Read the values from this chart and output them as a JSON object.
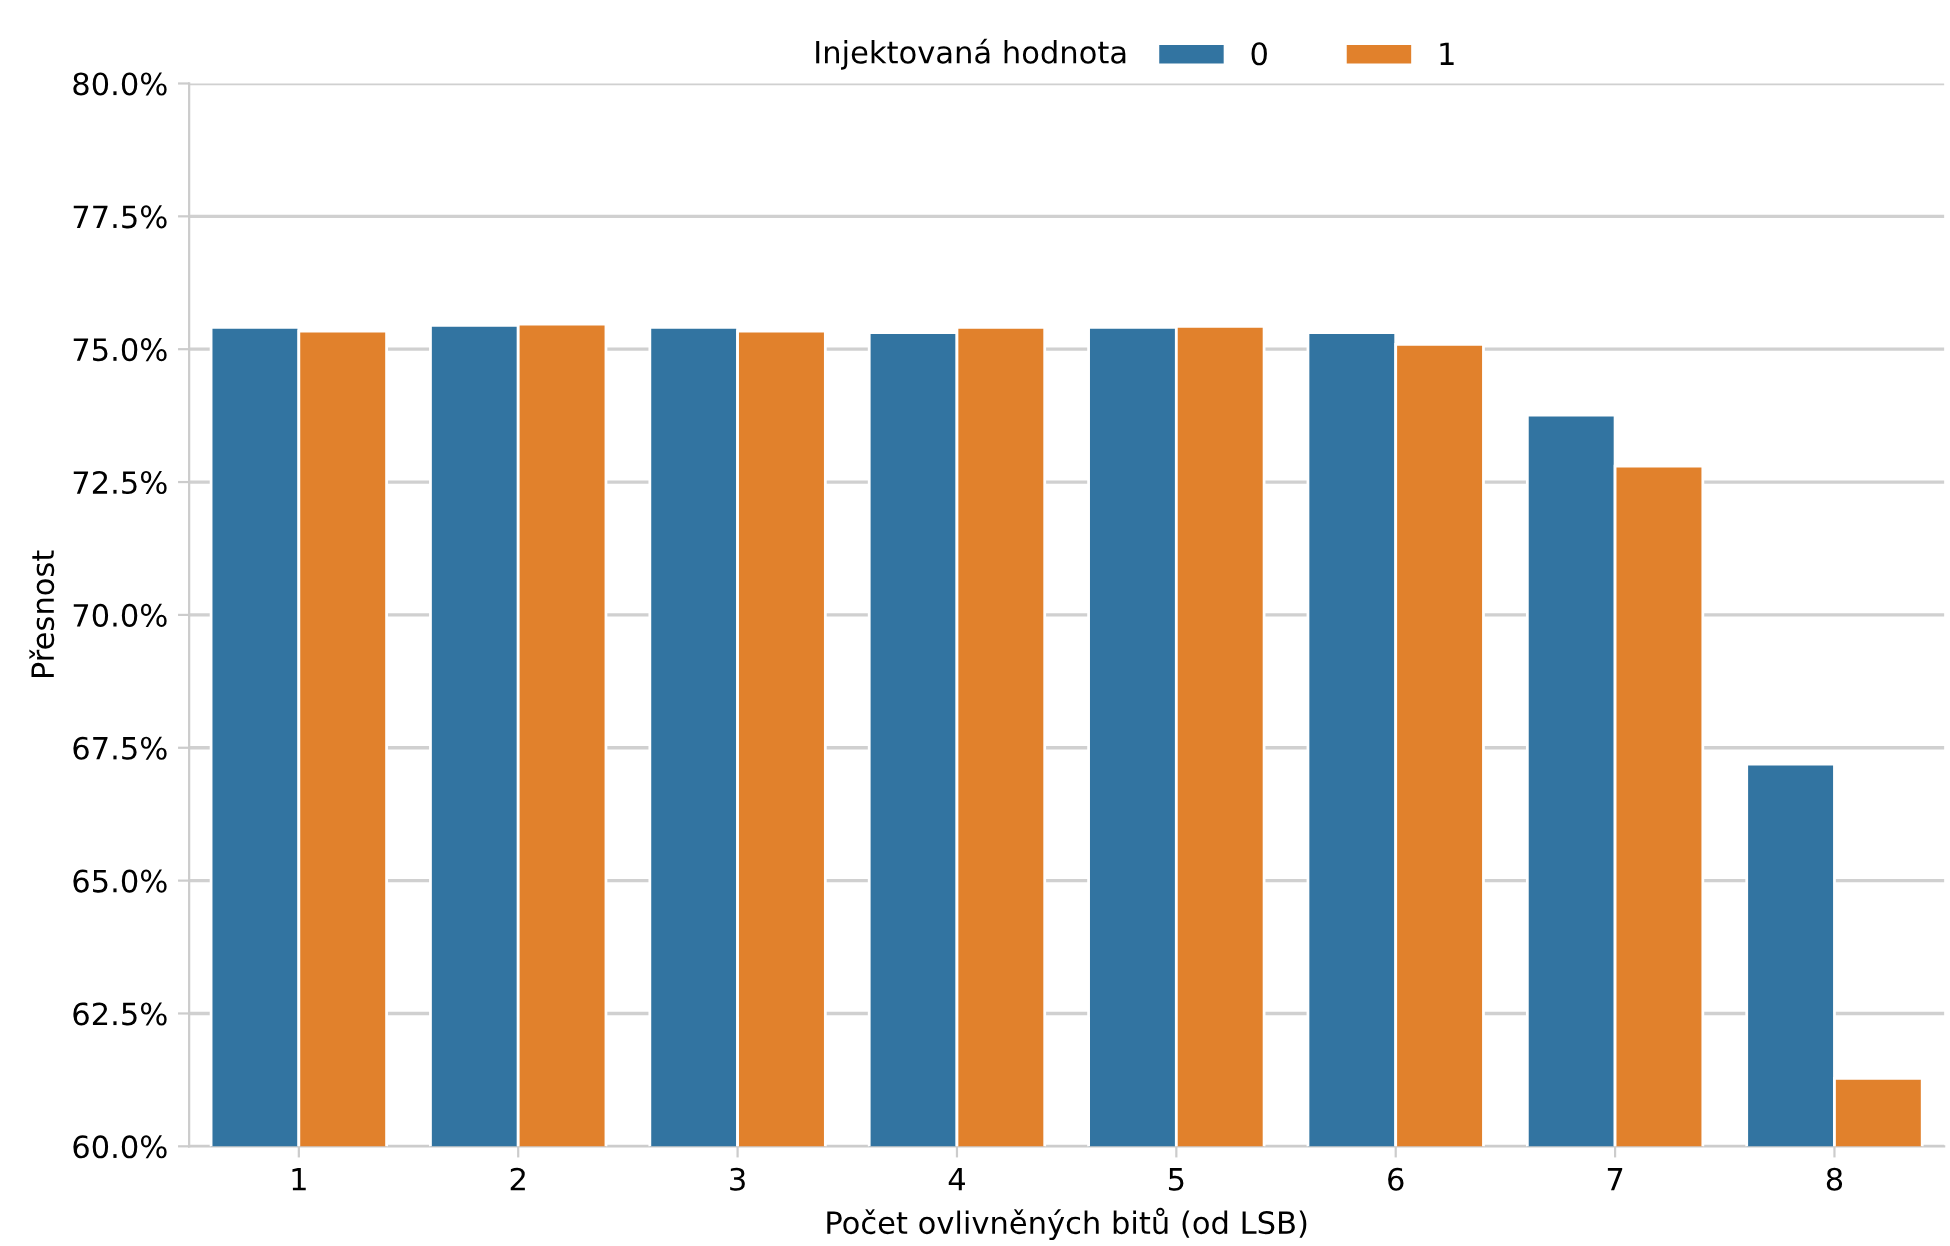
{
  "chart_data": {
    "type": "bar",
    "xlabel": "Počet ovlivněných bitů (od LSB)",
    "ylabel": "Přesnost",
    "legend_title": "Injektovaná hodnota",
    "legend": "top",
    "categories": [
      "1",
      "2",
      "3",
      "4",
      "5",
      "6",
      "7",
      "8"
    ],
    "series": [
      {
        "name": "0",
        "color": "#3274a1",
        "values": [
          75.41,
          75.45,
          75.41,
          75.31,
          75.41,
          75.31,
          73.76,
          67.19
        ]
      },
      {
        "name": "1",
        "color": "#e1812c",
        "values": [
          75.34,
          75.47,
          75.34,
          75.41,
          75.43,
          75.09,
          72.8,
          61.28
        ]
      }
    ],
    "ylim": [
      60,
      80
    ],
    "yticks": [
      {
        "value": 60,
        "label": "60.0%"
      },
      {
        "value": 62.5,
        "label": "62.5%"
      },
      {
        "value": 65,
        "label": "65.0%"
      },
      {
        "value": 67.5,
        "label": "67.5%"
      },
      {
        "value": 70,
        "label": "70.0%"
      },
      {
        "value": 72.5,
        "label": "72.5%"
      },
      {
        "value": 75,
        "label": "75.0%"
      },
      {
        "value": 77.5,
        "label": "77.5%"
      },
      {
        "value": 80,
        "label": "80.0%"
      }
    ],
    "grid": "y"
  }
}
